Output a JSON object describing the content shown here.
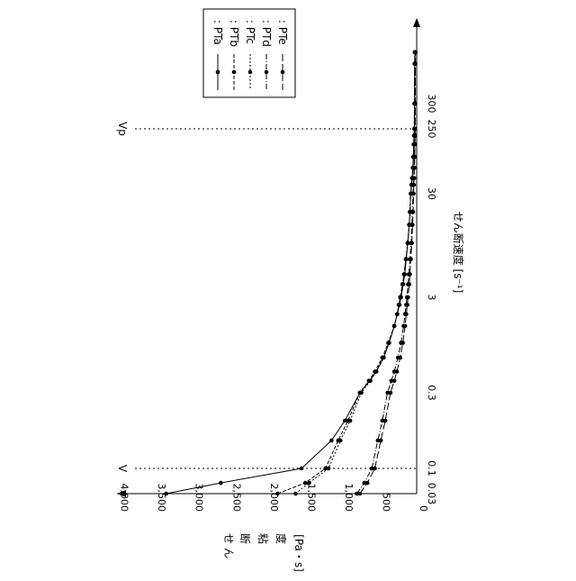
{
  "chart_data": {
    "type": "line",
    "orientation": "rotated-90-cw",
    "x_axis": {
      "label": "せん断速度 [s⁻¹]",
      "scale": "log",
      "range": [
        0.03,
        500
      ],
      "tick_labels": [
        "0.03",
        "0.1",
        "0.3",
        "3",
        "30",
        "250",
        "300"
      ]
    },
    "y_axis": {
      "label_lines": [
        "せ",
        "ん",
        "断",
        "粘",
        "度",
        "[Pa・s]"
      ],
      "range": [
        0,
        4000
      ],
      "tick_labels": [
        "0",
        "500",
        "1,000",
        "1,500",
        "2,000",
        "2,500",
        "3,000",
        "3,500",
        "4,000"
      ]
    },
    "reference_lines": [
      {
        "label": "V",
        "x": 0.1
      },
      {
        "label": "Vp",
        "x": 250
      }
    ],
    "legend": {
      "placement": "top-right",
      "entries": [
        "PTa",
        "PTb",
        "PTc",
        "PTd",
        "PTe"
      ]
    },
    "x": [
      0.03,
      0.05,
      0.1,
      0.15,
      0.2,
      0.3,
      0.4,
      0.5,
      0.7,
      1,
      1.5,
      2,
      2.5,
      3,
      4,
      5,
      7,
      10,
      15,
      20,
      30,
      40,
      50,
      70,
      100,
      150,
      200,
      250,
      300,
      400,
      500
    ],
    "series": [
      {
        "name": "PTa",
        "dash": "",
        "values": [
          3350,
          2620,
          1540,
          1140,
          960,
          760,
          630,
          540,
          440,
          370,
          300,
          260,
          230,
          210,
          180,
          160,
          140,
          120,
          100,
          90,
          80,
          70,
          60,
          50,
          45,
          40,
          35,
          30,
          28,
          25,
          22
        ]
      },
      {
        "name": "PTb",
        "dash": "4 2",
        "values": [
          1860,
          1490,
          1220,
          1050,
          920,
          760,
          640,
          560,
          460,
          380,
          300,
          260,
          240,
          220,
          190,
          170,
          145,
          120,
          100,
          90,
          80,
          70,
          60,
          50,
          45,
          40,
          35,
          32,
          30,
          28,
          25
        ]
      },
      {
        "name": "PTc",
        "dash": "2 2",
        "values": [
          1620,
          1440,
          1180,
          1020,
          890,
          740,
          620,
          540,
          450,
          370,
          300,
          260,
          240,
          220,
          190,
          170,
          145,
          120,
          100,
          90,
          80,
          70,
          60,
          50,
          45,
          40,
          35,
          32,
          30,
          28,
          25
        ]
      },
      {
        "name": "PTd",
        "dash": "6 2 1 2",
        "values": [
          800,
          700,
          600,
          520,
          460,
          390,
          340,
          300,
          250,
          210,
          175,
          155,
          140,
          130,
          115,
          105,
          90,
          75,
          65,
          58,
          50,
          45,
          40,
          35,
          30,
          27,
          25,
          23,
          22,
          20,
          18
        ]
      },
      {
        "name": "PTe",
        "dash": "8 3",
        "values": [
          760,
          660,
          560,
          480,
          420,
          350,
          300,
          265,
          220,
          185,
          155,
          140,
          125,
          115,
          100,
          90,
          78,
          65,
          55,
          48,
          42,
          38,
          34,
          30,
          26,
          23,
          21,
          20,
          19,
          18,
          16
        ]
      }
    ]
  }
}
